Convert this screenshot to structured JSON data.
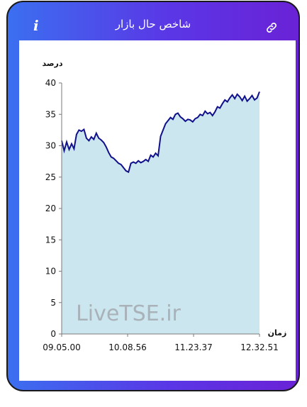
{
  "header": {
    "title": "شاخص حال بازار",
    "info_icon": "info-icon",
    "link_icon": "link-icon"
  },
  "watermark": "LiveTSE.ir",
  "chart_data": {
    "type": "area",
    "title": "",
    "ylabel": "درصد",
    "xlabel": "زمان",
    "ylim": [
      0,
      40
    ],
    "yticks": [
      0,
      5,
      10,
      15,
      20,
      25,
      30,
      35,
      40
    ],
    "xticks": [
      "09.05.00",
      "10.08.56",
      "11.23.37",
      "12.32.51"
    ],
    "colors": {
      "line": "#10108a",
      "fill": "#cce6f0"
    },
    "grid": false,
    "x": [
      0,
      1,
      2,
      3,
      4,
      5,
      6,
      7,
      8,
      9,
      10,
      11,
      12,
      13,
      14,
      15,
      16,
      17,
      18,
      19,
      20,
      21,
      22,
      23,
      24,
      25,
      26,
      27,
      28,
      29,
      30,
      31,
      32,
      33,
      34,
      35,
      36,
      37,
      38,
      39,
      40,
      41,
      42,
      43,
      44,
      45,
      46,
      47,
      48,
      49,
      50,
      51,
      52,
      53,
      54,
      55,
      56,
      57,
      58,
      59,
      60,
      61,
      62,
      63,
      64,
      65,
      66,
      67,
      68,
      69,
      70,
      71,
      72,
      73,
      74,
      75,
      76,
      77,
      78,
      79,
      80
    ],
    "values": [
      30.8,
      29.2,
      30.6,
      29.4,
      30.3,
      29.5,
      31.8,
      32.5,
      32.3,
      32.6,
      31.2,
      30.8,
      31.4,
      31.0,
      32.0,
      31.2,
      30.9,
      30.5,
      29.8,
      28.9,
      28.2,
      28.0,
      27.6,
      27.2,
      27.0,
      26.5,
      26.0,
      25.8,
      27.2,
      27.4,
      27.2,
      27.6,
      27.3,
      27.5,
      27.8,
      27.5,
      28.5,
      28.2,
      28.8,
      28.4,
      31.5,
      32.5,
      33.5,
      34.0,
      34.5,
      34.2,
      35.0,
      35.2,
      34.6,
      34.3,
      33.9,
      34.2,
      34.1,
      33.8,
      34.3,
      34.5,
      35.0,
      34.8,
      35.5,
      35.1,
      35.3,
      34.8,
      35.4,
      36.2,
      36.0,
      36.7,
      37.3,
      37.0,
      37.6,
      38.1,
      37.5,
      38.2,
      37.8,
      37.2,
      37.9,
      37.1,
      37.5,
      38.0,
      37.3,
      37.6,
      38.6
    ]
  }
}
